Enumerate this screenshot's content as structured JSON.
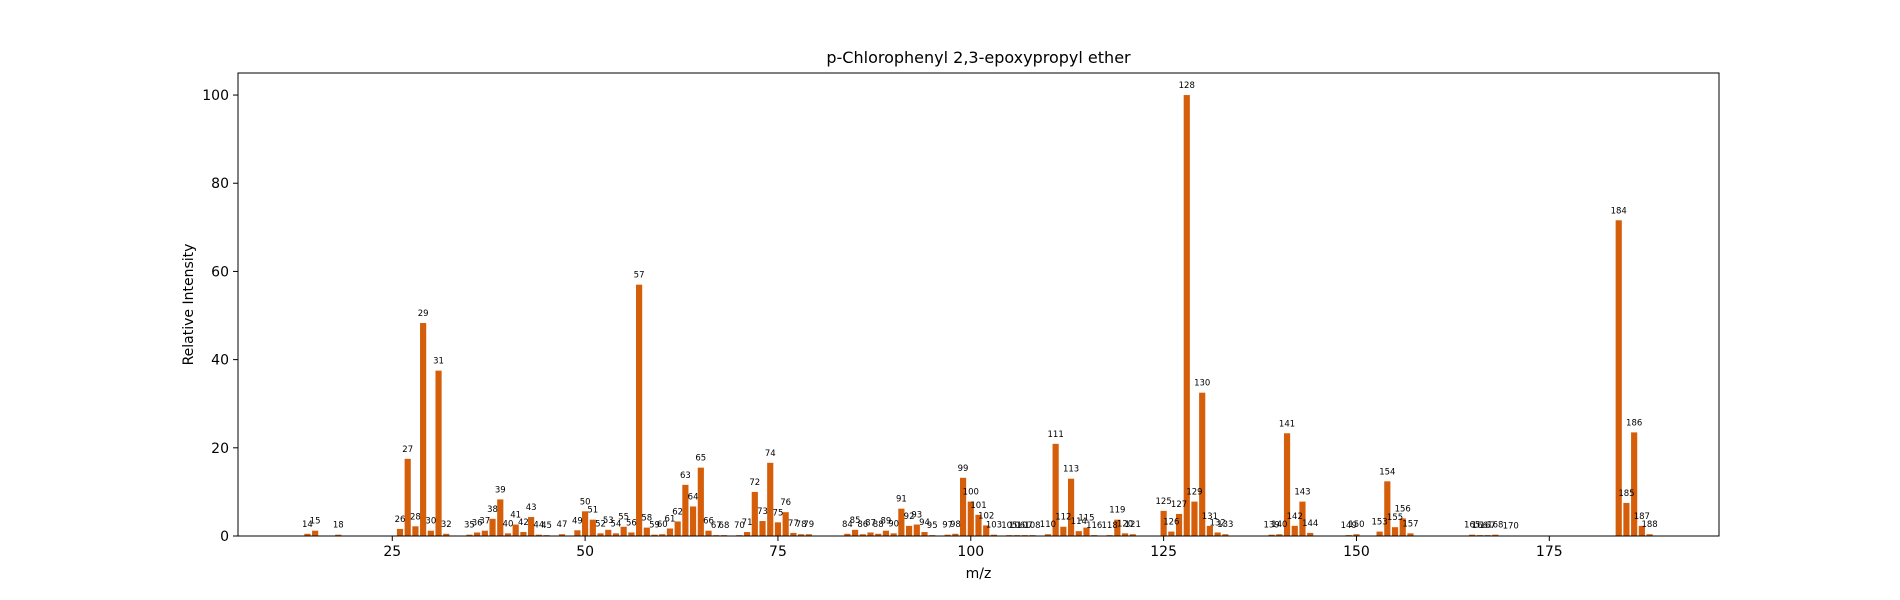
{
  "chart_data": {
    "type": "bar",
    "title": "p-Chlorophenyl 2,3-epoxypropyl ether",
    "xlabel": "m/z",
    "ylabel": "Relative Intensity",
    "xlim": [
      5,
      197
    ],
    "ylim": [
      0,
      105
    ],
    "xticks": [
      25,
      50,
      75,
      100,
      125,
      150,
      175
    ],
    "yticks": [
      0,
      20,
      40,
      60,
      80,
      100
    ],
    "grid": false,
    "bar_color": "#d55e0a",
    "x": [
      14,
      15,
      18,
      26,
      27,
      28,
      29,
      30,
      31,
      32,
      35,
      36,
      37,
      38,
      39,
      40,
      41,
      42,
      43,
      44,
      45,
      47,
      49,
      50,
      51,
      52,
      53,
      54,
      55,
      56,
      57,
      58,
      59,
      60,
      61,
      62,
      63,
      64,
      65,
      66,
      67,
      68,
      70,
      71,
      72,
      73,
      74,
      75,
      76,
      77,
      78,
      79,
      84,
      85,
      86,
      87,
      88,
      89,
      90,
      91,
      92,
      93,
      94,
      95,
      97,
      98,
      99,
      100,
      101,
      102,
      103,
      105,
      106,
      107,
      108,
      110,
      111,
      112,
      113,
      114,
      115,
      116,
      118,
      119,
      120,
      121,
      125,
      126,
      127,
      128,
      129,
      130,
      131,
      132,
      133,
      139,
      140,
      141,
      142,
      143,
      144,
      149,
      150,
      153,
      154,
      155,
      156,
      157,
      165,
      166,
      167,
      168,
      170,
      184,
      185,
      186,
      187,
      188
    ],
    "values": [
      0.5,
      1.2,
      0.3,
      1.6,
      17.5,
      2.2,
      48.3,
      1.2,
      37.5,
      0.5,
      0.3,
      0.8,
      1.2,
      3.9,
      8.3,
      0.6,
      2.6,
      0.9,
      4.3,
      0.3,
      0.2,
      0.4,
      1.3,
      5.6,
      3.7,
      0.6,
      1.4,
      0.6,
      2.1,
      0.8,
      57.0,
      1.9,
      0.3,
      0.4,
      1.7,
      3.3,
      11.6,
      6.7,
      15.5,
      1.2,
      0.2,
      0.2,
      0.2,
      0.9,
      10.0,
      3.4,
      16.6,
      3.1,
      5.4,
      0.7,
      0.4,
      0.4,
      0.5,
      1.4,
      0.4,
      0.8,
      0.5,
      1.2,
      0.6,
      6.2,
      2.3,
      2.6,
      0.9,
      0.2,
      0.3,
      0.5,
      13.2,
      7.8,
      4.8,
      2.4,
      0.3,
      0.2,
      0.2,
      0.2,
      0.2,
      0.4,
      20.9,
      2.1,
      13.0,
      1.1,
      1.9,
      0.2,
      0.2,
      3.7,
      0.6,
      0.4,
      5.7,
      1.0,
      5.0,
      100.0,
      7.8,
      32.5,
      2.3,
      0.8,
      0.4,
      0.3,
      0.4,
      23.3,
      2.3,
      7.8,
      0.7,
      0.2,
      0.4,
      1.0,
      12.4,
      2.0,
      4.0,
      0.6,
      0.3,
      0.2,
      0.2,
      0.3,
      0.1,
      71.6,
      7.5,
      23.5,
      2.3,
      0.4
    ]
  }
}
